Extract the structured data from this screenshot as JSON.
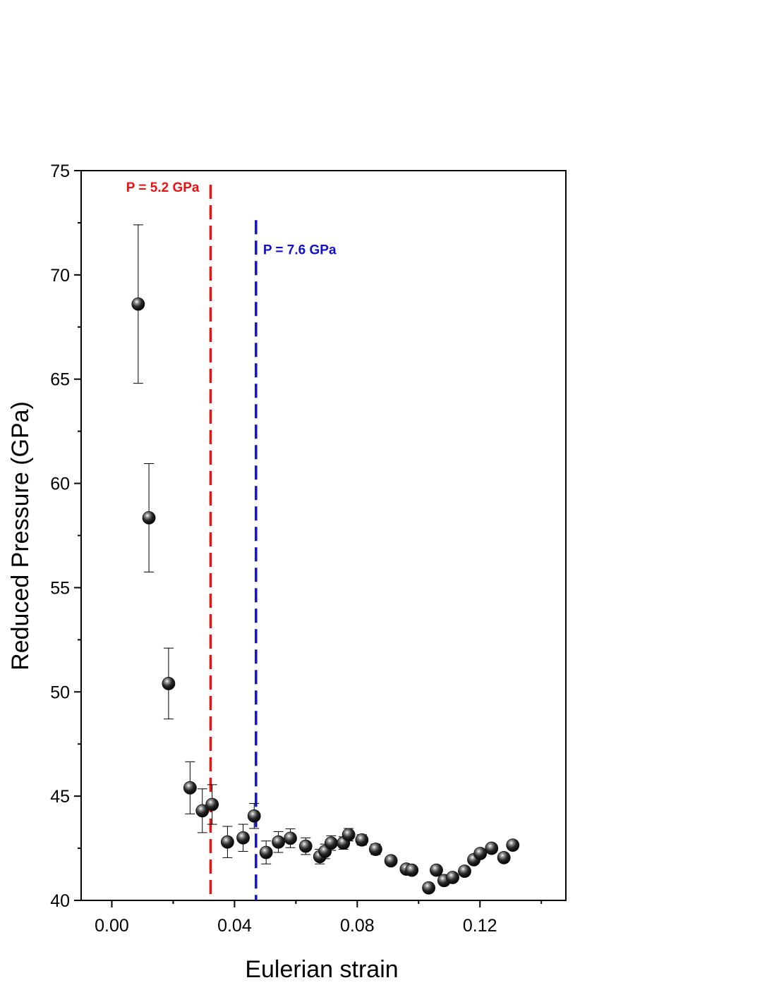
{
  "chart_data": {
    "type": "scatter",
    "title": "",
    "xlabel": "Eulerian strain",
    "ylabel": "Reduced Pressure (GPa)",
    "xlim": [
      -0.01,
      0.148
    ],
    "ylim": [
      40,
      75
    ],
    "x_ticks": [
      "0.00",
      "0.04",
      "0.08",
      "0.12"
    ],
    "x_tick_values": [
      0.0,
      0.04,
      0.08,
      0.12
    ],
    "y_ticks": [
      "40",
      "45",
      "50",
      "55",
      "60",
      "65",
      "70",
      "75"
    ],
    "y_tick_values": [
      40,
      45,
      50,
      55,
      60,
      65,
      70,
      75
    ],
    "grid": false,
    "marker_color": "#111111",
    "points": [
      {
        "x": 0.0086,
        "y": 68.6,
        "err": 3.8
      },
      {
        "x": 0.0121,
        "y": 58.35,
        "err": 2.6
      },
      {
        "x": 0.0185,
        "y": 50.4,
        "err": 1.7
      },
      {
        "x": 0.0255,
        "y": 45.4,
        "err": 1.25
      },
      {
        "x": 0.0295,
        "y": 44.3,
        "err": 1.05
      },
      {
        "x": 0.0327,
        "y": 44.6,
        "err": 0.95
      },
      {
        "x": 0.0377,
        "y": 42.8,
        "err": 0.75
      },
      {
        "x": 0.0428,
        "y": 43.0,
        "err": 0.65
      },
      {
        "x": 0.0464,
        "y": 44.05,
        "err": 0.6
      },
      {
        "x": 0.0503,
        "y": 42.3,
        "err": 0.55
      },
      {
        "x": 0.0543,
        "y": 42.8,
        "err": 0.5
      },
      {
        "x": 0.0582,
        "y": 42.98,
        "err": 0.45
      },
      {
        "x": 0.0632,
        "y": 42.6,
        "err": 0.4
      },
      {
        "x": 0.0678,
        "y": 42.1,
        "err": 0.35
      },
      {
        "x": 0.0695,
        "y": 42.35,
        "err": 0.35
      },
      {
        "x": 0.0715,
        "y": 42.75,
        "err": 0.35
      },
      {
        "x": 0.0755,
        "y": 42.75,
        "err": 0.3
      },
      {
        "x": 0.0772,
        "y": 43.15,
        "err": 0.3
      },
      {
        "x": 0.0815,
        "y": 42.9,
        "err": 0.25
      },
      {
        "x": 0.086,
        "y": 42.45,
        "err": 0.25
      },
      {
        "x": 0.091,
        "y": 41.9,
        "err": 0.2
      },
      {
        "x": 0.096,
        "y": 41.5,
        "err": 0.2
      },
      {
        "x": 0.0978,
        "y": 41.45,
        "err": 0.2
      },
      {
        "x": 0.1033,
        "y": 40.6,
        "err": 0.2
      },
      {
        "x": 0.1058,
        "y": 41.45,
        "err": 0.2
      },
      {
        "x": 0.1083,
        "y": 40.95,
        "err": 0.2
      },
      {
        "x": 0.1111,
        "y": 41.1,
        "err": 0.2
      },
      {
        "x": 0.115,
        "y": 41.4,
        "err": 0.2
      },
      {
        "x": 0.118,
        "y": 41.95,
        "err": 0.2
      },
      {
        "x": 0.1201,
        "y": 42.25,
        "err": 0.2
      },
      {
        "x": 0.1238,
        "y": 42.5,
        "err": 0.2
      },
      {
        "x": 0.1278,
        "y": 42.05,
        "err": 0.2
      },
      {
        "x": 0.1307,
        "y": 42.65,
        "err": 0.2
      }
    ],
    "reference_lines": [
      {
        "x": 0.0322,
        "y_top": 75,
        "label": "P = 5.2 GPa",
        "color": "#ee1111",
        "label_side": "left"
      },
      {
        "x": 0.047,
        "y_top": 73.3,
        "label": "P = 7.6 GPa",
        "color": "#1111cc",
        "label_side": "right"
      }
    ]
  }
}
